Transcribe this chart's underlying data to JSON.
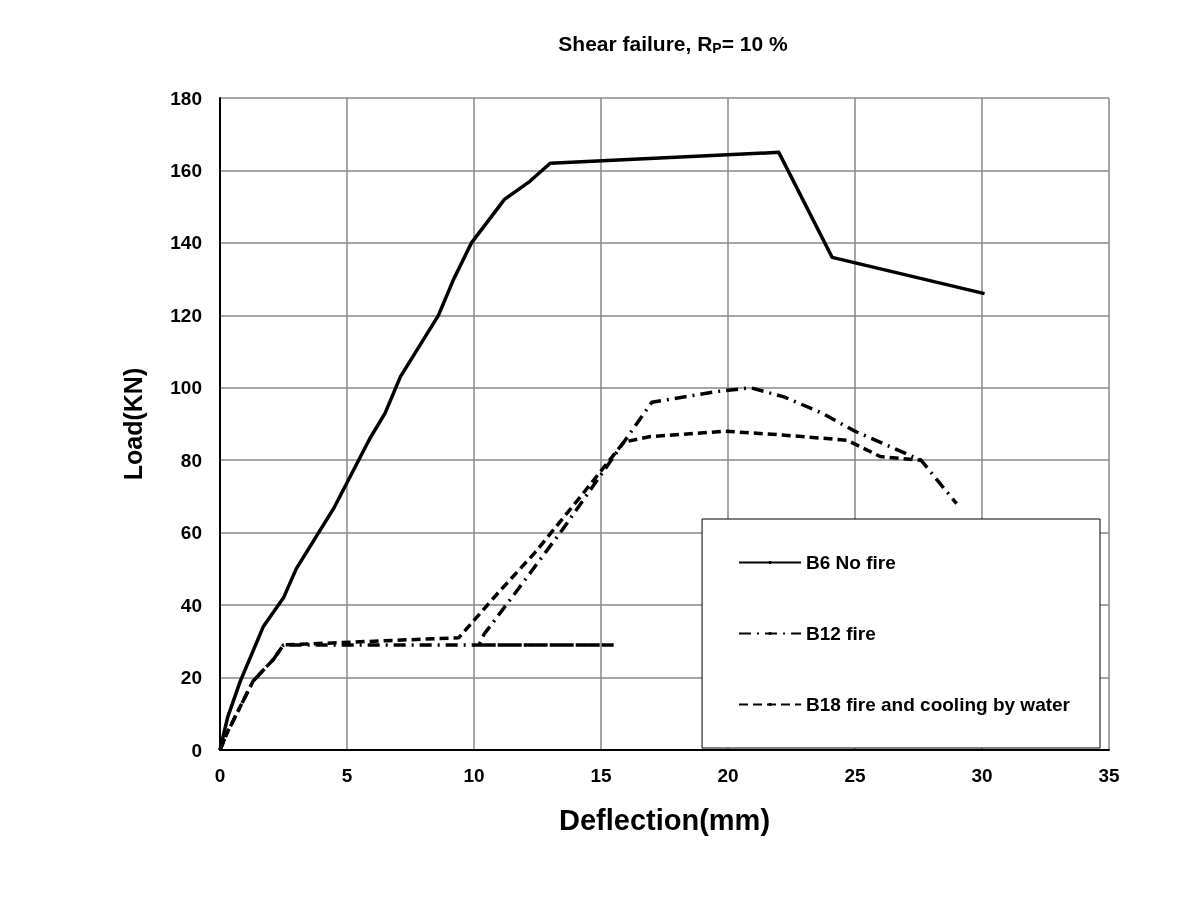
{
  "chart_data": {
    "type": "line",
    "title": "Shear failure, R$_{P}$= 10 %",
    "xlabel": "Deflection(mm)",
    "ylabel": "Load(KN)",
    "xlim": [
      0,
      35
    ],
    "xticks": [
      0,
      5,
      10,
      15,
      20,
      25,
      30,
      35
    ],
    "ylim": [
      0,
      180
    ],
    "yticks": [
      0,
      20,
      40,
      60,
      80,
      100,
      120,
      140,
      160,
      180
    ],
    "grid": true,
    "legend": "bottom right",
    "marker": "none",
    "series": [
      {
        "name": "B6 No fire",
        "color": "#000000",
        "line_style": "solid",
        "x": [
          0,
          0.3,
          0.8,
          1.7,
          2.5,
          3,
          4.5,
          5.9,
          6.5,
          7.1,
          8.6,
          9.2,
          9.9,
          11.2,
          12.2,
          13,
          22,
          24.1,
          30.1
        ],
        "values": [
          0,
          9,
          19,
          34,
          42,
          50,
          67,
          86,
          93,
          103,
          120,
          130,
          140,
          152,
          157,
          162,
          165,
          136,
          126
        ]
      },
      {
        "name": "B12 fire",
        "color": "#000000",
        "line_style": "dashdot",
        "x": [
          0,
          0.3,
          1.3,
          2.1,
          2.5,
          15.5,
          10.2,
          10.4,
          11.8,
          13.5,
          14.9,
          16.4,
          17,
          19.6,
          20.9,
          22.2,
          23.7,
          25,
          27.6,
          29
        ],
        "values": [
          0,
          5,
          19,
          25,
          29,
          29,
          29,
          32,
          45,
          61,
          75,
          90,
          96,
          99,
          100,
          97.5,
          93,
          88,
          80,
          68
        ]
      },
      {
        "name": "B18 fire and cooling by water",
        "color": "#000000",
        "line_style": "dashed",
        "x": [
          0,
          0.3,
          1.3,
          2.1,
          2.5,
          9.4,
          10.9,
          12.4,
          14.2,
          15.9,
          16.9,
          19.9,
          22.1,
          24.7,
          26,
          27.6
        ],
        "values": [
          0,
          5,
          19,
          25,
          29,
          31,
          43,
          54.5,
          70,
          85,
          86.5,
          88,
          87,
          85.5,
          81,
          80
        ]
      }
    ]
  }
}
